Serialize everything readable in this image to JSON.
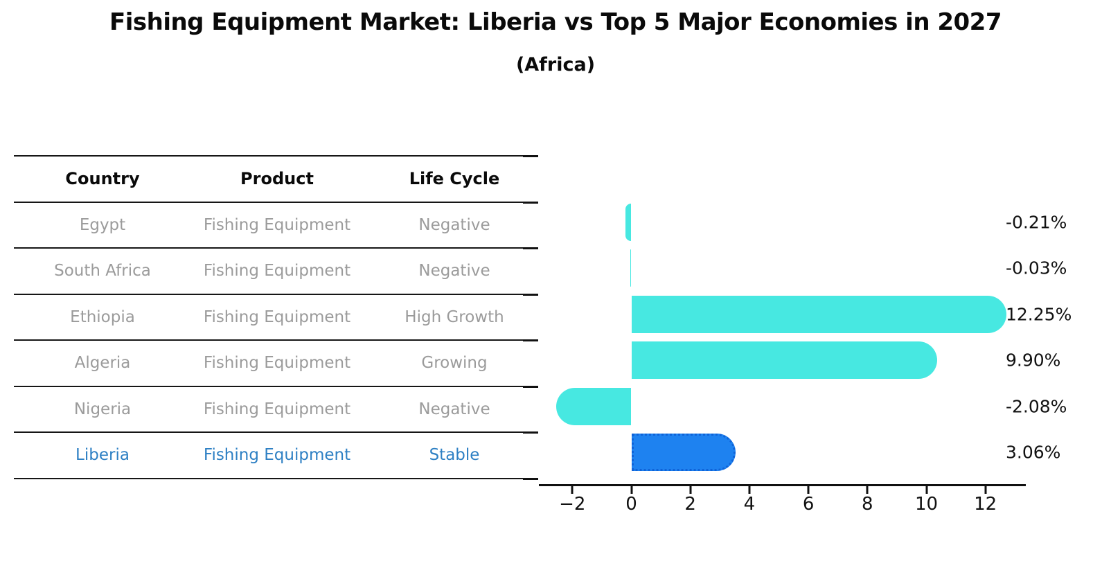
{
  "chart_data": {
    "type": "bar",
    "orientation": "horizontal",
    "title": "Fishing Equipment Market: Liberia vs Top 5 Major Economies in 2027",
    "subtitle": "(Africa)",
    "categories": [
      "Egypt",
      "South Africa",
      "Ethiopia",
      "Algeria",
      "Nigeria",
      "Liberia"
    ],
    "values": [
      -0.21,
      -0.03,
      12.25,
      9.9,
      -2.08,
      3.06
    ],
    "value_labels": [
      "-0.21%",
      "-0.03%",
      "12.25%",
      "9.90%",
      "-2.08%",
      "3.06%"
    ],
    "x_tick_values": [
      -2,
      0,
      2,
      4,
      6,
      8,
      10,
      12
    ],
    "x_tick_labels": [
      "−2",
      "0",
      "2",
      "4",
      "6",
      "8",
      "10",
      "12"
    ],
    "xlim": [
      -3.1,
      13.35
    ],
    "highlight_index": 5,
    "bar_color": "#47E8E1",
    "highlight_bar_color": "#1E82F0",
    "highlight_border_color": "#0F63D8",
    "value_label_color": "#111111",
    "grid": false,
    "legend": false
  },
  "table": {
    "columns": [
      "Country",
      "Product",
      "Life Cycle"
    ],
    "rows": [
      {
        "country": "Egypt",
        "product": "Fishing Equipment",
        "life_cycle": "Negative",
        "highlight": false
      },
      {
        "country": "South Africa",
        "product": "Fishing Equipment",
        "life_cycle": "Negative",
        "highlight": false
      },
      {
        "country": "Ethiopia",
        "product": "Fishing Equipment",
        "life_cycle": "High Growth",
        "highlight": false
      },
      {
        "country": "Algeria",
        "product": "Fishing Equipment",
        "life_cycle": "Growing",
        "highlight": false
      },
      {
        "country": "Nigeria",
        "product": "Fishing Equipment",
        "life_cycle": "Negative",
        "highlight": false
      },
      {
        "country": "Liberia",
        "product": "Fishing Equipment",
        "life_cycle": "Stable",
        "highlight": true
      }
    ],
    "text_color": "#9B9B9B",
    "highlight_text_color": "#2E80C4"
  }
}
